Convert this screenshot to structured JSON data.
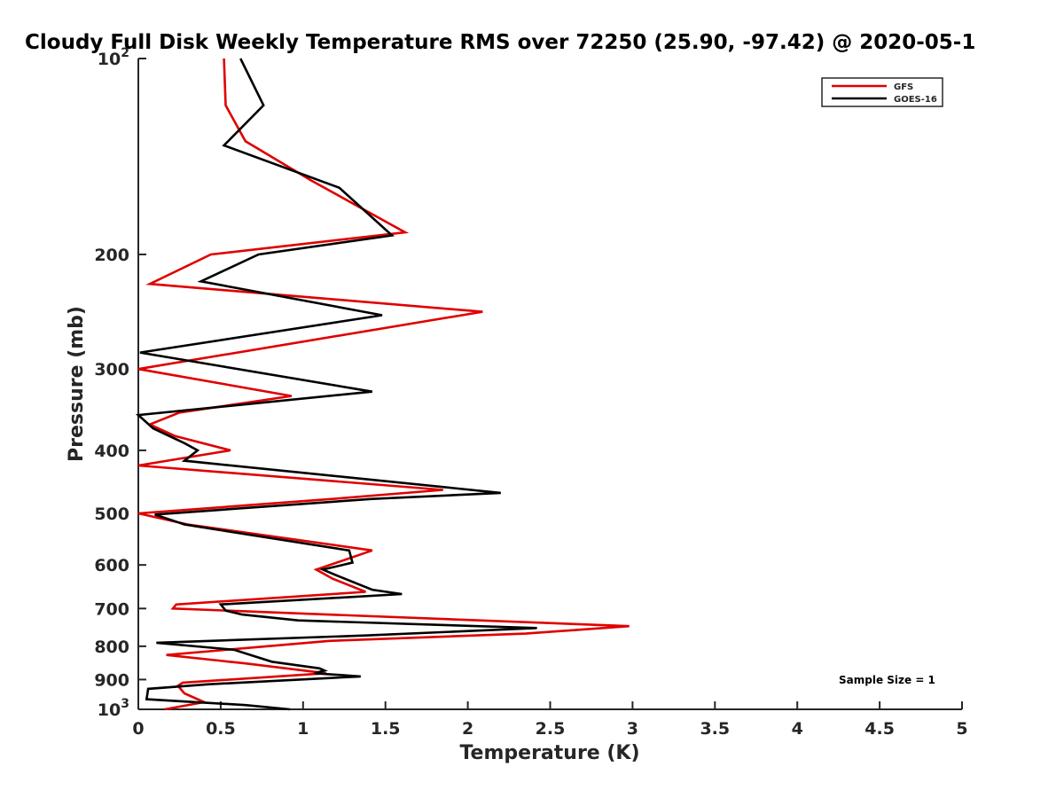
{
  "chart_data": {
    "type": "line",
    "title": "Cloudy Full Disk Weekly Temperature RMS over 72250 (25.90, -97.42) @ 2020-05-1",
    "xlabel": "Temperature (K)",
    "ylabel": "Pressure (mb)",
    "xlim": [
      0,
      5
    ],
    "ylim": [
      100,
      1000
    ],
    "y_scale": "log",
    "y_reversed": true,
    "grid": false,
    "legend_position": "top-right",
    "x_ticks": [
      "0",
      "0.5",
      "1",
      "1.5",
      "2",
      "2.5",
      "3",
      "3.5",
      "4",
      "4.5",
      "5"
    ],
    "x_tick_values": [
      0,
      0.5,
      1,
      1.5,
      2,
      2.5,
      3,
      3.5,
      4,
      4.5,
      5
    ],
    "y_ticks": [
      {
        "value": 100,
        "base": "10",
        "exp": "2"
      },
      {
        "value": 200,
        "base": "200",
        "exp": ""
      },
      {
        "value": 300,
        "base": "300",
        "exp": ""
      },
      {
        "value": 400,
        "base": "400",
        "exp": ""
      },
      {
        "value": 500,
        "base": "500",
        "exp": ""
      },
      {
        "value": 600,
        "base": "600",
        "exp": ""
      },
      {
        "value": 700,
        "base": "700",
        "exp": ""
      },
      {
        "value": 800,
        "base": "800",
        "exp": ""
      },
      {
        "value": 900,
        "base": "900",
        "exp": ""
      },
      {
        "value": 1000,
        "base": "10",
        "exp": "3"
      }
    ],
    "series": [
      {
        "name": "GFS",
        "color": "#e00000",
        "points": [
          [
            0.52,
            100
          ],
          [
            0.53,
            118
          ],
          [
            0.65,
            134
          ],
          [
            1.05,
            154
          ],
          [
            1.62,
            185
          ],
          [
            0.44,
            200
          ],
          [
            0.07,
            222
          ],
          [
            2.09,
            245
          ],
          [
            0.0,
            300
          ],
          [
            0.93,
            330
          ],
          [
            0.25,
            350
          ],
          [
            0.07,
            365
          ],
          [
            0.22,
            380
          ],
          [
            0.56,
            400
          ],
          [
            0.0,
            422
          ],
          [
            1.85,
            460
          ],
          [
            1.18,
            475
          ],
          [
            0.0,
            500
          ],
          [
            0.3,
            520
          ],
          [
            1.42,
            570
          ],
          [
            1.08,
            610
          ],
          [
            1.18,
            630
          ],
          [
            1.38,
            660
          ],
          [
            0.23,
            690
          ],
          [
            0.21,
            700
          ],
          [
            2.98,
            745
          ],
          [
            2.35,
            765
          ],
          [
            1.16,
            785
          ],
          [
            0.17,
            825
          ],
          [
            0.65,
            850
          ],
          [
            1.14,
            880
          ],
          [
            0.27,
            910
          ],
          [
            0.24,
            920
          ],
          [
            0.28,
            945
          ],
          [
            0.4,
            975
          ],
          [
            0.16,
            1000
          ]
        ]
      },
      {
        "name": "GOES-16",
        "color": "#000000",
        "points": [
          [
            0.62,
            100
          ],
          [
            0.76,
            118
          ],
          [
            0.52,
            136
          ],
          [
            1.22,
            158
          ],
          [
            1.54,
            187
          ],
          [
            0.73,
            200
          ],
          [
            0.38,
            220
          ],
          [
            1.48,
            248
          ],
          [
            0.01,
            283
          ],
          [
            1.42,
            325
          ],
          [
            0.0,
            353
          ],
          [
            0.09,
            370
          ],
          [
            0.28,
            390
          ],
          [
            0.36,
            400
          ],
          [
            0.28,
            415
          ],
          [
            2.2,
            465
          ],
          [
            1.42,
            475
          ],
          [
            0.1,
            502
          ],
          [
            0.28,
            520
          ],
          [
            1.28,
            570
          ],
          [
            1.3,
            595
          ],
          [
            1.12,
            610
          ],
          [
            1.22,
            625
          ],
          [
            1.42,
            655
          ],
          [
            1.6,
            665
          ],
          [
            0.5,
            690
          ],
          [
            0.53,
            705
          ],
          [
            0.63,
            715
          ],
          [
            0.97,
            730
          ],
          [
            2.42,
            750
          ],
          [
            1.38,
            770
          ],
          [
            0.11,
            790
          ],
          [
            0.58,
            810
          ],
          [
            0.81,
            845
          ],
          [
            1.1,
            865
          ],
          [
            1.13,
            872
          ],
          [
            1.07,
            880
          ],
          [
            1.35,
            890
          ],
          [
            0.43,
            915
          ],
          [
            0.06,
            930
          ],
          [
            0.05,
            965
          ],
          [
            0.65,
            985
          ],
          [
            0.92,
            1000
          ]
        ]
      }
    ],
    "annotation": "Sample Size = 1"
  }
}
